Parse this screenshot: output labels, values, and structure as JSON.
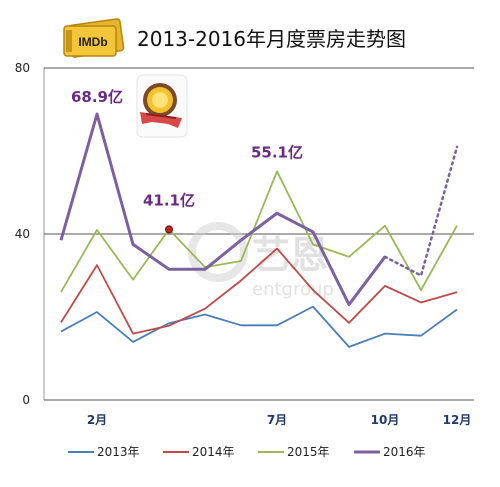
{
  "logo_text": "IMDb",
  "watermark": {
    "cn": "艺恩",
    "en": "entgroup"
  },
  "chart_data": {
    "type": "line",
    "title": "2013-2016年月度票房走势图",
    "x": [
      1,
      2,
      3,
      4,
      5,
      6,
      7,
      8,
      9,
      10,
      11,
      12
    ],
    "x_tick_labels": [
      {
        "x": 2,
        "label": "2月"
      },
      {
        "x": 7,
        "label": "7月"
      },
      {
        "x": 10,
        "label": "10月"
      },
      {
        "x": 12,
        "label": "12月"
      }
    ],
    "ylim": [
      0,
      80
    ],
    "yticks": [
      0,
      40,
      80
    ],
    "grid": true,
    "legend_position": "bottom",
    "series": [
      {
        "name": "2013年",
        "color": "#4a7ebb",
        "values": [
          16.5,
          21.2,
          14.0,
          18.5,
          20.6,
          18.0,
          18.0,
          22.5,
          12.8,
          16.0,
          15.5,
          21.8
        ]
      },
      {
        "name": "2014年",
        "color": "#be4b48",
        "values": [
          18.7,
          32.5,
          16.0,
          17.9,
          22.0,
          28.8,
          36.5,
          26.5,
          18.6,
          27.5,
          23.5,
          26.0
        ]
      },
      {
        "name": "2015年",
        "color": "#98b954",
        "values": [
          26.0,
          41.0,
          29.0,
          41.1,
          32.0,
          33.5,
          55.1,
          37.5,
          34.5,
          42.0,
          26.5,
          42.0
        ]
      },
      {
        "name": "2016年",
        "color": "#7d60a0",
        "values": [
          38.5,
          68.9,
          37.5,
          31.5,
          31.5,
          38.5,
          45.0,
          40.5,
          23.0,
          34.5,
          null,
          null
        ],
        "projection": {
          "x": [
            10,
            11,
            12
          ],
          "values": [
            34.5,
            30.0,
            61.0
          ]
        }
      }
    ],
    "annotations": [
      {
        "text": "68.9亿",
        "x": 2,
        "y": 68.9,
        "series": "2016年"
      },
      {
        "text": "41.1亿",
        "x": 4,
        "y": 41.1,
        "series": "2015年"
      },
      {
        "text": "55.1亿",
        "x": 7,
        "y": 55.1,
        "series": "2015年"
      }
    ]
  }
}
